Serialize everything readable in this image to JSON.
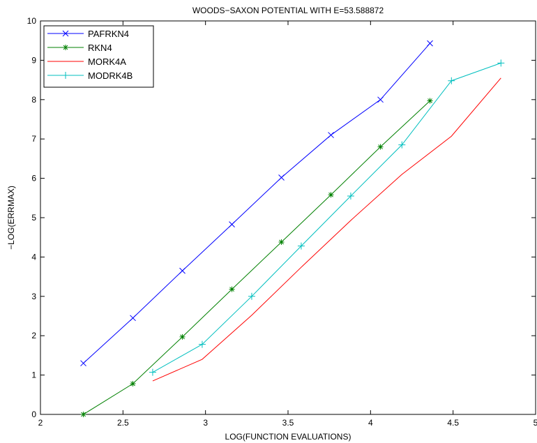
{
  "chart_data": {
    "type": "line",
    "title": "WOODS−SAXON POTENTIAL WITH E=53.588872",
    "xlabel": "LOG(FUNCTION EVALUATIONS)",
    "ylabel": "−LOG(ERRMAX)",
    "xlim": [
      2,
      5
    ],
    "ylim": [
      0,
      10
    ],
    "xticks": [
      "2",
      "2.5",
      "3",
      "3.5",
      "4",
      "4.5",
      "5"
    ],
    "yticks": [
      "0",
      "1",
      "2",
      "3",
      "4",
      "5",
      "6",
      "7",
      "8",
      "9",
      "10"
    ],
    "grid": false,
    "legend_position": "top-left",
    "series": [
      {
        "name": "PAFRKN4",
        "color": "#0000ff",
        "marker": "x",
        "x": [
          2.26,
          2.56,
          2.86,
          3.16,
          3.46,
          3.76,
          4.06,
          4.36
        ],
        "y": [
          1.3,
          2.45,
          3.65,
          4.83,
          6.02,
          7.1,
          8.0,
          9.43
        ]
      },
      {
        "name": "RKN4",
        "color": "#008000",
        "marker": "*",
        "x": [
          2.26,
          2.56,
          2.86,
          3.16,
          3.46,
          3.76,
          4.06,
          4.36
        ],
        "y": [
          0.0,
          0.78,
          1.97,
          3.18,
          4.38,
          5.58,
          6.8,
          7.97
        ]
      },
      {
        "name": "MORK4A",
        "color": "#ff0000",
        "marker": "none",
        "x": [
          2.68,
          2.98,
          3.28,
          3.58,
          3.88,
          4.19,
          4.49,
          4.79
        ],
        "y": [
          0.85,
          1.4,
          2.52,
          3.74,
          4.93,
          6.1,
          7.07,
          8.55
        ]
      },
      {
        "name": "MODRK4B",
        "color": "#00bfbf",
        "marker": "+",
        "x": [
          2.68,
          2.98,
          3.28,
          3.58,
          3.88,
          4.19,
          4.49,
          4.79
        ],
        "y": [
          1.07,
          1.78,
          3.0,
          4.28,
          5.55,
          6.85,
          8.48,
          8.93
        ]
      }
    ]
  }
}
